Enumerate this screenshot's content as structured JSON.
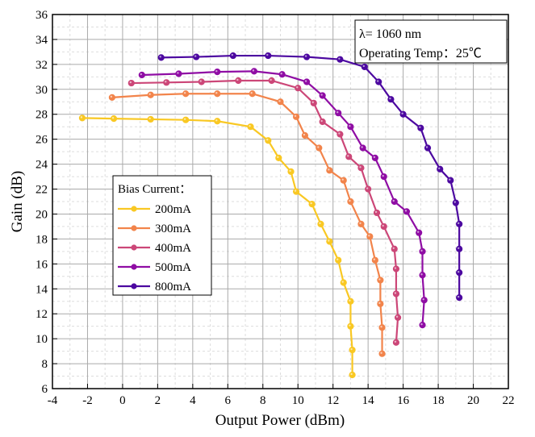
{
  "chart_data": {
    "type": "line",
    "xlabel": "Output Power (dBm)",
    "ylabel": "Gain (dB)",
    "xlim": [
      -4,
      22
    ],
    "ylim": [
      6,
      36
    ],
    "xticks": [
      -4,
      -2,
      0,
      2,
      4,
      6,
      8,
      10,
      12,
      14,
      16,
      18,
      20,
      22
    ],
    "yticks": [
      6,
      8,
      10,
      12,
      14,
      16,
      18,
      20,
      22,
      24,
      26,
      28,
      30,
      32,
      34,
      36
    ],
    "grid": true,
    "annotation": [
      "λ= 1060 nm",
      "Operating Temp：25℃"
    ],
    "legend_title": "Bias Current：",
    "legend_placement": "center-left",
    "series": [
      {
        "name": "200mA",
        "color": "#F9C823",
        "points": [
          [
            -2.3,
            27.7
          ],
          [
            -0.5,
            27.65
          ],
          [
            1.6,
            27.6
          ],
          [
            3.6,
            27.55
          ],
          [
            5.4,
            27.45
          ],
          [
            7.3,
            27.0
          ],
          [
            8.3,
            25.9
          ],
          [
            8.9,
            24.5
          ],
          [
            9.6,
            23.4
          ],
          [
            9.9,
            21.8
          ],
          [
            10.8,
            20.8
          ],
          [
            11.3,
            19.2
          ],
          [
            11.8,
            17.8
          ],
          [
            12.3,
            16.3
          ],
          [
            12.6,
            14.5
          ],
          [
            13.0,
            13.0
          ],
          [
            13.0,
            11.0
          ],
          [
            13.1,
            9.1
          ],
          [
            13.1,
            7.1
          ]
        ]
      },
      {
        "name": "300mA",
        "color": "#F2844B",
        "points": [
          [
            -0.6,
            29.35
          ],
          [
            1.6,
            29.55
          ],
          [
            3.6,
            29.65
          ],
          [
            5.4,
            29.65
          ],
          [
            7.4,
            29.65
          ],
          [
            9.0,
            29.0
          ],
          [
            9.9,
            27.8
          ],
          [
            10.4,
            26.3
          ],
          [
            11.2,
            25.3
          ],
          [
            11.8,
            23.5
          ],
          [
            12.6,
            22.7
          ],
          [
            13.0,
            21.0
          ],
          [
            13.6,
            19.2
          ],
          [
            14.1,
            18.2
          ],
          [
            14.4,
            16.3
          ],
          [
            14.7,
            14.7
          ],
          [
            14.7,
            12.8
          ],
          [
            14.8,
            10.9
          ],
          [
            14.8,
            8.8
          ]
        ]
      },
      {
        "name": "400mA",
        "color": "#CC4778",
        "points": [
          [
            0.5,
            30.5
          ],
          [
            2.5,
            30.55
          ],
          [
            4.5,
            30.6
          ],
          [
            6.6,
            30.7
          ],
          [
            8.5,
            30.7
          ],
          [
            10.0,
            30.1
          ],
          [
            10.9,
            28.9
          ],
          [
            11.4,
            27.4
          ],
          [
            12.4,
            26.4
          ],
          [
            12.9,
            24.6
          ],
          [
            13.6,
            23.7
          ],
          [
            14.0,
            22.0
          ],
          [
            14.5,
            20.1
          ],
          [
            14.9,
            19.0
          ],
          [
            15.5,
            17.2
          ],
          [
            15.6,
            15.6
          ],
          [
            15.6,
            13.6
          ],
          [
            15.7,
            11.7
          ],
          [
            15.6,
            9.7
          ]
        ]
      },
      {
        "name": "500mA",
        "color": "#8F0DA4",
        "points": [
          [
            1.1,
            31.15
          ],
          [
            3.2,
            31.25
          ],
          [
            5.4,
            31.4
          ],
          [
            7.5,
            31.45
          ],
          [
            9.1,
            31.2
          ],
          [
            10.5,
            30.6
          ],
          [
            11.4,
            29.5
          ],
          [
            12.3,
            28.1
          ],
          [
            13.0,
            27.0
          ],
          [
            13.7,
            25.3
          ],
          [
            14.4,
            24.5
          ],
          [
            14.9,
            23.0
          ],
          [
            15.5,
            21.0
          ],
          [
            16.2,
            20.2
          ],
          [
            16.9,
            18.5
          ],
          [
            17.1,
            17.0
          ],
          [
            17.1,
            15.1
          ],
          [
            17.2,
            13.1
          ],
          [
            17.1,
            11.1
          ]
        ]
      },
      {
        "name": "800mA",
        "color": "#4C08A0",
        "points": [
          [
            2.2,
            32.55
          ],
          [
            4.2,
            32.6
          ],
          [
            6.3,
            32.7
          ],
          [
            8.3,
            32.7
          ],
          [
            10.5,
            32.6
          ],
          [
            12.4,
            32.4
          ],
          [
            13.8,
            31.8
          ],
          [
            14.6,
            30.6
          ],
          [
            15.3,
            29.2
          ],
          [
            16.0,
            28.0
          ],
          [
            17.0,
            26.9
          ],
          [
            17.4,
            25.3
          ],
          [
            18.1,
            23.6
          ],
          [
            18.7,
            22.7
          ],
          [
            19.0,
            20.9
          ],
          [
            19.2,
            19.2
          ],
          [
            19.2,
            17.2
          ],
          [
            19.2,
            15.3
          ],
          [
            19.2,
            13.3
          ]
        ]
      }
    ]
  }
}
